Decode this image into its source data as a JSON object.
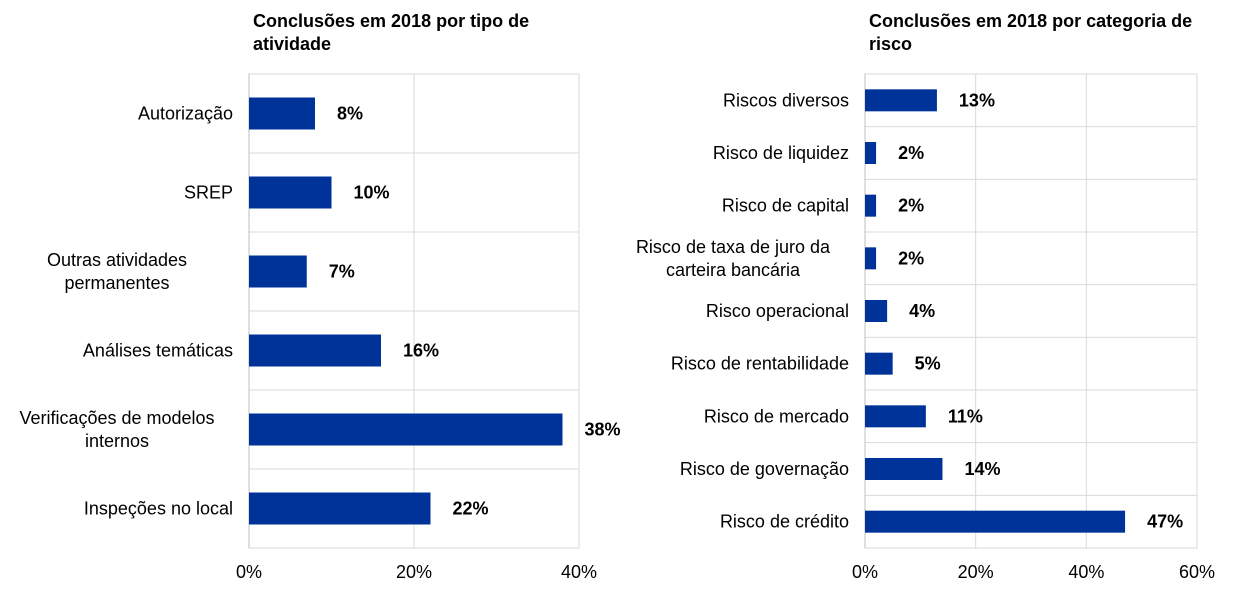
{
  "chart_data": [
    {
      "type": "bar",
      "orientation": "horizontal",
      "title": "Conclusões em 2018 por tipo de atividade",
      "categories": [
        "Autorização",
        "SREP",
        "Outras atividades permanentes",
        "Análises temáticas",
        "Verificações de modelos internos",
        "Inspeções no local"
      ],
      "values": [
        8,
        10,
        7,
        16,
        38,
        22
      ],
      "value_labels": [
        "8%",
        "10%",
        "7%",
        "16%",
        "38%",
        "22%"
      ],
      "xlim": [
        0,
        40
      ],
      "xticks": [
        0,
        20,
        40
      ],
      "xtick_labels": [
        "0%",
        "20%",
        "40%"
      ],
      "xlabel": "",
      "ylabel": "",
      "grid": true,
      "legend": "none",
      "bar_color": "#003399"
    },
    {
      "type": "bar",
      "orientation": "horizontal",
      "title": "Conclusões em 2018 por categoria de risco",
      "categories": [
        "Riscos diversos",
        "Risco de liquidez",
        "Risco de capital",
        "Risco de taxa de juro da carteira bancária",
        "Risco operacional",
        "Risco de rentabilidade",
        "Risco de mercado",
        "Risco de governação",
        "Risco de crédito"
      ],
      "values": [
        13,
        2,
        2,
        2,
        4,
        5,
        11,
        14,
        47
      ],
      "value_labels": [
        "13%",
        "2%",
        "2%",
        "2%",
        "4%",
        "5%",
        "11%",
        "14%",
        "47%"
      ],
      "xlim": [
        0,
        60
      ],
      "xticks": [
        0,
        20,
        40,
        60
      ],
      "xtick_labels": [
        "0%",
        "20%",
        "40%",
        "60%"
      ],
      "xlabel": "",
      "ylabel": "",
      "grid": true,
      "legend": "none",
      "bar_color": "#003399"
    }
  ]
}
